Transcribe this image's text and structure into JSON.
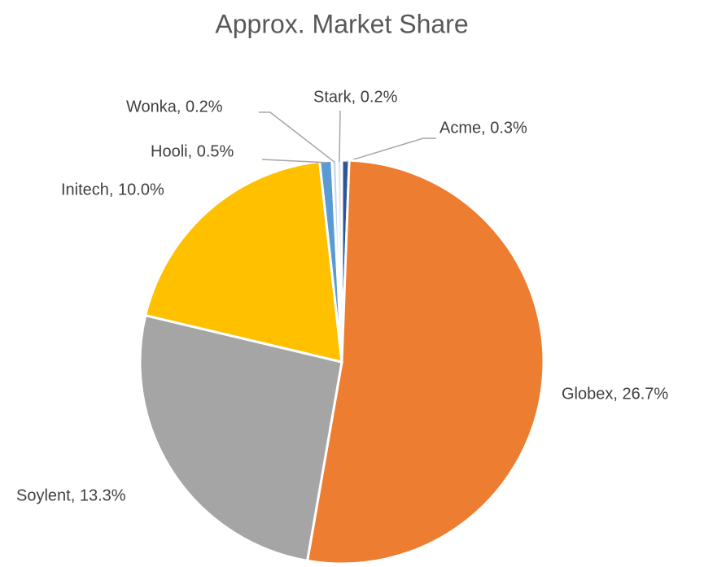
{
  "chart_data": {
    "type": "pie",
    "title": "Approx. Market Share",
    "values": [
      0.3,
      26.7,
      13.3,
      10.0,
      0.5,
      0.2,
      0.2
    ],
    "value_labels": [
      "Acme, 0.3%",
      "Globex, 26.7%",
      "Soylent, 13.3%",
      "Initech, 10.0%",
      "Hooli, 0.5%",
      "Wonka, 0.2%",
      "Stark, 0.2%"
    ],
    "colors": [
      "#2e5597",
      "#ed7d31",
      "#a5a5a5",
      "#ffc000",
      "#5b9bd5",
      "#c9d9ee",
      "#e6e6e6"
    ]
  }
}
